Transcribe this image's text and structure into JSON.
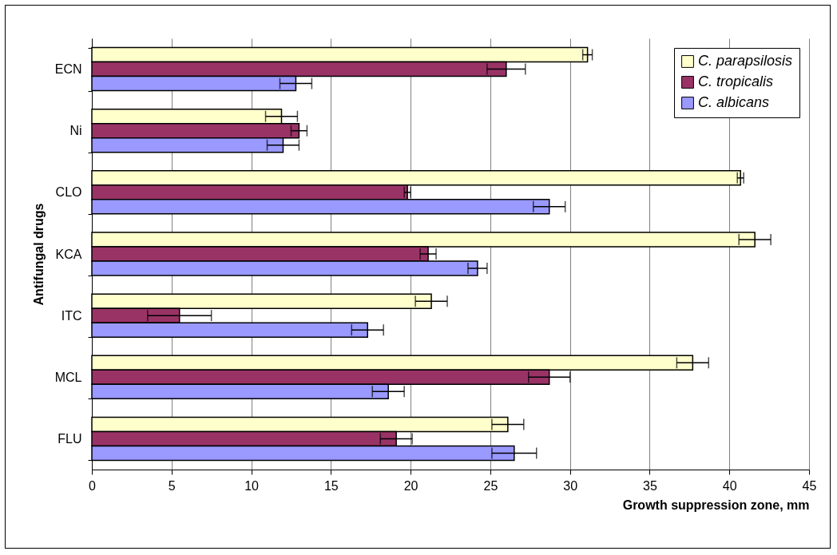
{
  "chart_data": {
    "type": "bar",
    "orientation": "horizontal",
    "categories": [
      "ECN",
      "Ni",
      "CLO",
      "KCA",
      "ITC",
      "MCL",
      "FLU"
    ],
    "series": [
      {
        "name": "C. parapsilosis",
        "color": "#ffffcc",
        "values": [
          31.1,
          11.9,
          40.7,
          41.6,
          21.3,
          37.7,
          26.1
        ],
        "errors": [
          0.3,
          1.0,
          0.2,
          1.0,
          1.0,
          1.0,
          1.0
        ]
      },
      {
        "name": "C. tropicalis",
        "color": "#993366",
        "values": [
          26.0,
          13.0,
          19.8,
          21.1,
          5.5,
          28.7,
          19.1
        ],
        "errors": [
          1.2,
          0.5,
          0.2,
          0.5,
          2.0,
          1.3,
          1.0
        ]
      },
      {
        "name": "C. albicans",
        "color": "#9999ff",
        "values": [
          12.8,
          12.0,
          28.7,
          24.2,
          17.3,
          18.6,
          26.5
        ],
        "errors": [
          1.0,
          1.0,
          1.0,
          0.6,
          1.0,
          1.0,
          1.4
        ]
      }
    ],
    "xlabel": "Growth suppression zone, mm",
    "ylabel": "Antifungal drugs",
    "xlim": [
      0,
      45
    ],
    "xticks": [
      0,
      5,
      10,
      15,
      20,
      25,
      30,
      35,
      40,
      45
    ],
    "grid": "x",
    "legend": "top right"
  }
}
